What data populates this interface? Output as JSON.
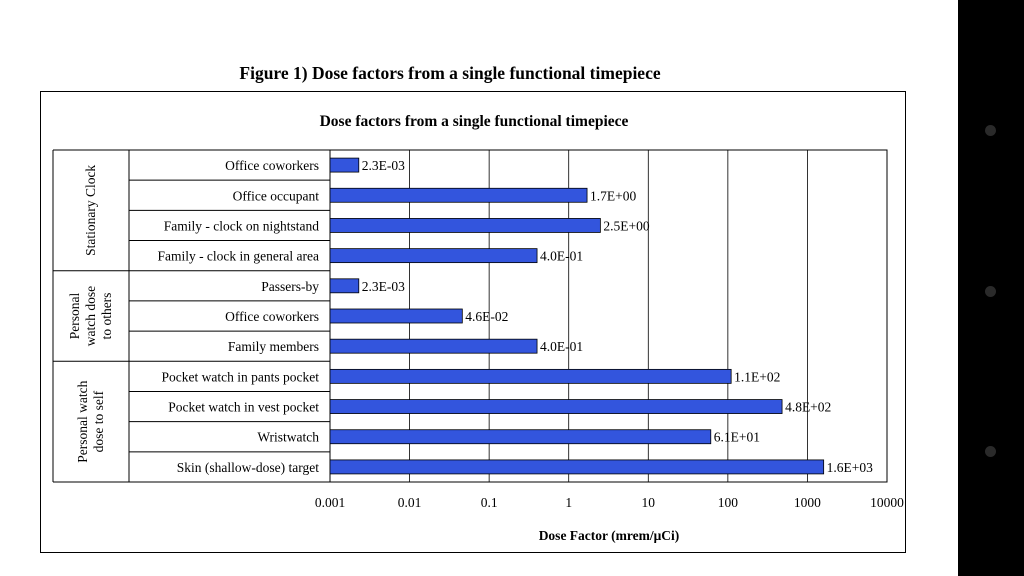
{
  "figure_caption": "Figure 1) Dose factors from a single functional timepiece",
  "chart_data": {
    "type": "bar",
    "orientation": "horizontal",
    "title": "Dose factors from a single functional timepiece",
    "xlabel": "Dose Factor (mrem/μCi)",
    "ylabel": "",
    "xscale": "log",
    "xlim": [
      0.001,
      10000
    ],
    "x_ticks": [
      "0.001",
      "0.01",
      "0.1",
      "1",
      "10",
      "100",
      "1000",
      "10000"
    ],
    "bar_color": "#3355dd",
    "grid": "vertical major gridlines",
    "groups": [
      {
        "label_lines": [
          "Stationary Clock"
        ],
        "categories": [
          "Office coworkers",
          "Office occupant",
          "Family - clock on nightstand",
          "Family - clock in general area"
        ]
      },
      {
        "label_lines": [
          "Personal",
          "watch dose",
          "to others"
        ],
        "categories": [
          "Passers-by",
          "Office coworkers",
          "Family members"
        ]
      },
      {
        "label_lines": [
          "Personal watch",
          "dose to self"
        ],
        "categories": [
          "Pocket watch in pants pocket",
          "Pocket watch in vest pocket",
          "Wristwatch",
          "Skin (shallow-dose) target"
        ]
      }
    ],
    "categories": [
      "Office coworkers",
      "Office occupant",
      "Family - clock on nightstand",
      "Family - clock in general area",
      "Passers-by",
      "Office coworkers",
      "Family members",
      "Pocket watch in pants pocket",
      "Pocket watch in vest pocket",
      "Wristwatch",
      "Skin (shallow-dose) target"
    ],
    "values": [
      0.0023,
      1.7,
      2.5,
      0.4,
      0.0023,
      0.046,
      0.4,
      110,
      480,
      61,
      1600
    ],
    "data_labels": [
      "2.3E-03",
      "1.7E+00",
      "2.5E+00",
      "4.0E-01",
      "2.3E-03",
      "4.6E-02",
      "4.0E-01",
      "1.1E+02",
      "4.8E+02",
      "6.1E+01",
      "1.6E+03"
    ]
  }
}
